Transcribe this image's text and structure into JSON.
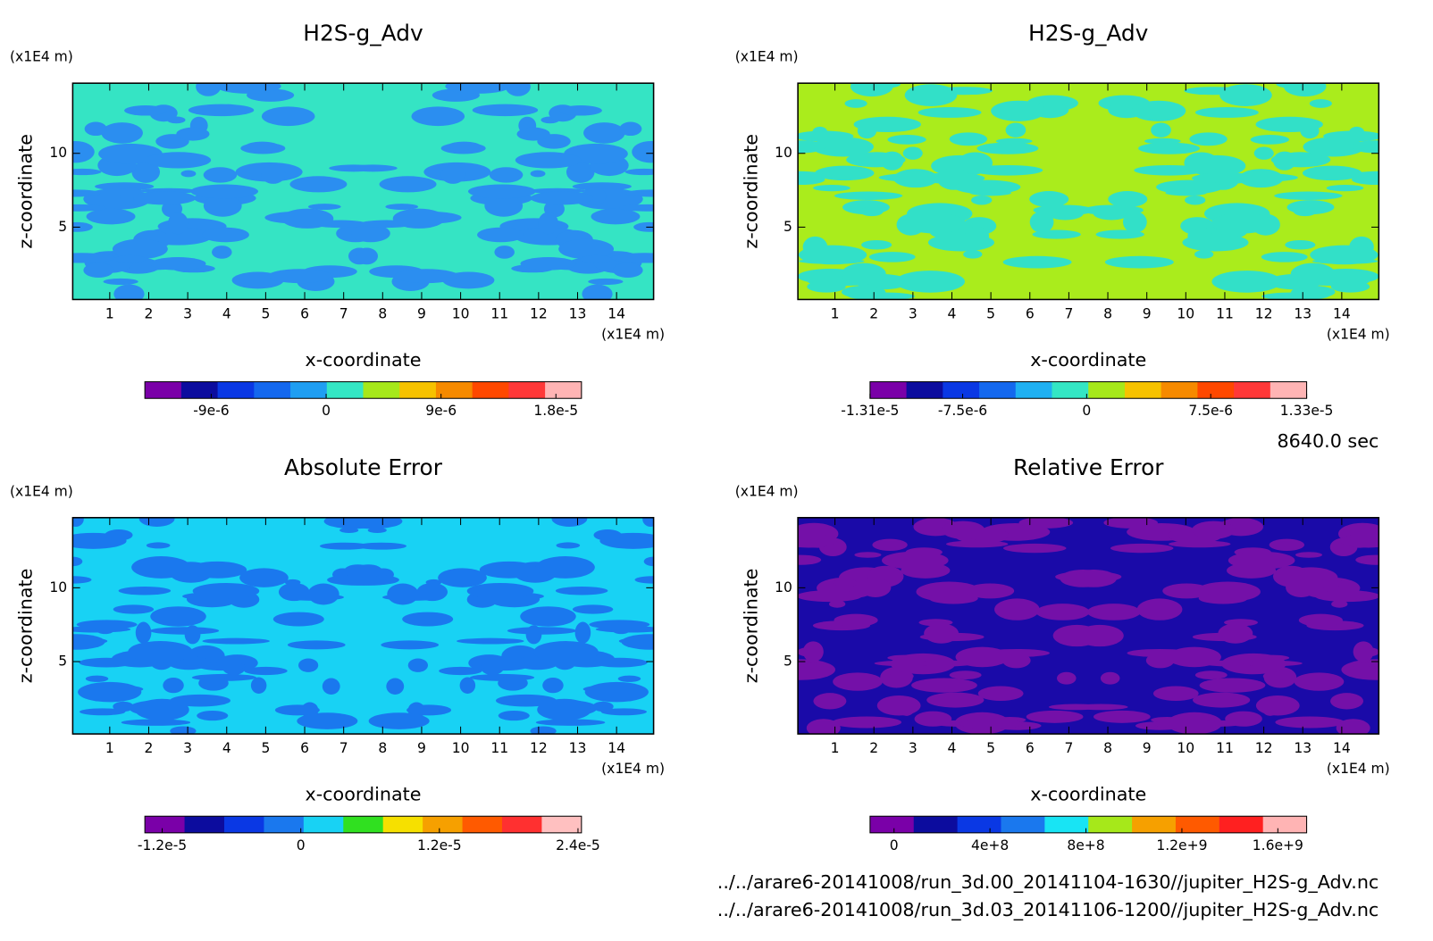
{
  "chart_data": [
    {
      "type": "contour",
      "title": "H2S-g_Adv",
      "xlabel": "x-coordinate",
      "ylabel": "z-coordinate",
      "xunit": "(x1E4 m)",
      "yunit": "(x1E4 m)",
      "xlim": [
        0.05,
        14.95
      ],
      "ylim": [
        0.1,
        14.75
      ],
      "xticks": [
        1,
        2,
        3,
        4,
        5,
        6,
        7,
        8,
        9,
        10,
        11,
        12,
        13,
        14
      ],
      "yticks": [
        5,
        10
      ],
      "fill_colors": [
        "#35e4c4",
        "#2b8ef0"
      ],
      "colorbar": {
        "lim": [
          -1.42e-05,
          2e-05
        ],
        "ticks": [
          {
            "value": -9e-06,
            "label": "-9e-6"
          },
          0,
          {
            "value": 9e-06,
            "label": "9e-6"
          },
          {
            "value": 1.8e-05,
            "label": "1.8e-5"
          }
        ],
        "colors": [
          "#7a00a8",
          "#0c0c9e",
          "#0a38e4",
          "#1468ee",
          "#1f9ef2",
          "#34e6c4",
          "#a6e81a",
          "#f6c200",
          "#f68a00",
          "#ff4800",
          "#ff3838",
          "#ffb4b4"
        ]
      }
    },
    {
      "type": "contour",
      "title": "H2S-g_Adv",
      "xlabel": "x-coordinate",
      "ylabel": "z-coordinate",
      "xunit": "(x1E4 m)",
      "yunit": "(x1E4 m)",
      "xlim": [
        0.05,
        14.95
      ],
      "ylim": [
        0.1,
        14.75
      ],
      "xticks": [
        1,
        2,
        3,
        4,
        5,
        6,
        7,
        8,
        9,
        10,
        11,
        12,
        13,
        14
      ],
      "yticks": [
        5,
        10
      ],
      "fill_colors": [
        "#aaec1c",
        "#32e0c8"
      ],
      "colorbar": {
        "lim": [
          -1.31e-05,
          1.33e-05
        ],
        "ticks": [
          {
            "value": -1.31e-05,
            "label": "-1.31e-5"
          },
          {
            "value": -7.5e-06,
            "label": "-7.5e-6"
          },
          0,
          {
            "value": 7.5e-06,
            "label": "7.5e-6"
          },
          {
            "value": 1.33e-05,
            "label": "1.33e-5"
          }
        ],
        "colors": [
          "#7a00a8",
          "#0c0c9e",
          "#0a38e4",
          "#1468ee",
          "#1fb0f2",
          "#34e6c4",
          "#a6e81a",
          "#f6c200",
          "#f68a00",
          "#ff4800",
          "#ff3838",
          "#ffb4b4"
        ]
      }
    },
    {
      "type": "contour",
      "title": "Absolute Error",
      "xlabel": "x-coordinate",
      "ylabel": "z-coordinate",
      "xunit": "(x1E4 m)",
      "yunit": "(x1E4 m)",
      "xlim": [
        0.05,
        14.95
      ],
      "ylim": [
        0.1,
        14.75
      ],
      "xticks": [
        1,
        2,
        3,
        4,
        5,
        6,
        7,
        8,
        9,
        10,
        11,
        12,
        13,
        14
      ],
      "yticks": [
        5,
        10
      ],
      "fill_colors": [
        "#18d2f4",
        "#1a78ee"
      ],
      "colorbar": {
        "lim": [
          -1.35e-05,
          2.43e-05
        ],
        "ticks": [
          {
            "value": -1.2e-05,
            "label": "-1.2e-5"
          },
          0,
          {
            "value": 1.2e-05,
            "label": "1.2e-5"
          },
          {
            "value": 2.4e-05,
            "label": "2.4e-5"
          }
        ],
        "colors": [
          "#7a00a8",
          "#0c0c9e",
          "#0a38e4",
          "#1a78ee",
          "#18d2f4",
          "#30e020",
          "#f6e000",
          "#f6a000",
          "#ff5a00",
          "#ff3030",
          "#ffc0c0"
        ]
      }
    },
    {
      "type": "contour",
      "title": "Relative Error",
      "xlabel": "x-coordinate",
      "ylabel": "z-coordinate",
      "xunit": "(x1E4 m)",
      "yunit": "(x1E4 m)",
      "xlim": [
        0.05,
        14.95
      ],
      "ylim": [
        0.1,
        14.75
      ],
      "xticks": [
        1,
        2,
        3,
        4,
        5,
        6,
        7,
        8,
        9,
        10,
        11,
        12,
        13,
        14
      ],
      "yticks": [
        5,
        10
      ],
      "fill_colors": [
        "#1a0aa8",
        "#7410a8"
      ],
      "colorbar": {
        "lim": [
          -100000000.0,
          1720000000.0
        ],
        "ticks": [
          0,
          {
            "value": 400000000.0,
            "label": "4e+8"
          },
          {
            "value": 800000000.0,
            "label": "8e+8"
          },
          {
            "value": 1200000000.0,
            "label": "1.2e+9"
          },
          {
            "value": 1600000000.0,
            "label": "1.6e+9"
          }
        ],
        "colors": [
          "#7a00a8",
          "#0c0c9e",
          "#0a38e4",
          "#1a78ee",
          "#18e4f4",
          "#a6e81a",
          "#f6a000",
          "#ff5a00",
          "#ff2020",
          "#ffb4b4"
        ]
      }
    }
  ],
  "annotations": {
    "time": "8640.0 sec",
    "files": [
      "../../arare6-20141008/run_3d.00_20141104-1630//jupiter_H2S-g_Adv.nc",
      "../../arare6-20141008/run_3d.03_20141106-1200//jupiter_H2S-g_Adv.nc"
    ]
  }
}
